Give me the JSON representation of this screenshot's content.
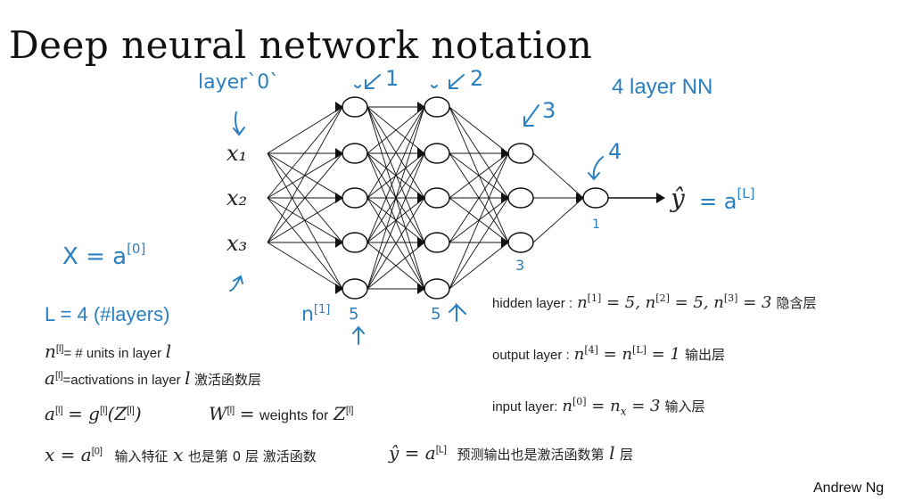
{
  "title": "Deep neural network notation",
  "annotations": {
    "layer0": "layer`0`",
    "layer1": "1",
    "layer2": "2",
    "layer3": "3",
    "layer4": "4",
    "four_layer": "4 layer NN",
    "x_eq": "X = a",
    "x_eq_sup": "[0]",
    "n_label": "n",
    "n_label_sup": "[1]",
    "count5a": "5",
    "count5b": "5",
    "count3": "3",
    "count1": "1",
    "yhat_eq": "= a",
    "yhat_eq_sup": "[L]"
  },
  "inputs": [
    "x₁",
    "x₂",
    "x₃"
  ],
  "yhat": "ŷ",
  "network": {
    "layer_sizes": [
      5,
      5,
      3,
      1
    ]
  },
  "left_notes": {
    "L_line": "L = 4  (#layers)",
    "n_def_sym": "n",
    "n_def_sup": "[l]",
    "n_def_text": "= # units in layer",
    "n_def_l": "l",
    "a_def_sym": "a",
    "a_def_sup": "[l]",
    "a_def_text": "=activations in layer",
    "a_def_l": "l",
    "a_def_cn": "激活函数层",
    "a_eq": "a",
    "a_eq_sup": "[l]",
    "a_eq_rhs": "= g",
    "a_eq_rhs_sup": "[l]",
    "a_eq_z": "(Z",
    "a_eq_z_sup": "[l]",
    "a_eq_close": ")",
    "w_sym": "W",
    "w_sup": "[l]",
    "w_text": "= weights for",
    "w_z": "Z",
    "w_z_sup": "[l]",
    "x_line_lhs": "x = a",
    "x_line_sup": "[0]",
    "x_line_cn1": "输入特征",
    "x_line_x": "x",
    "x_line_cn2": "也是第 0 层 激活函数",
    "y_line_lhs": "ŷ = a",
    "y_line_sup": "[L]",
    "y_line_cn1": "预测输出也是激活函数第",
    "y_line_l": "l",
    "y_line_cn2": "层"
  },
  "right_notes": {
    "hidden_label": "hidden layer :",
    "hidden_math": "n^[1] = 5, n^[2] = 5, n^[3] = 3",
    "hidden_cn": "隐含层",
    "output_label": "output layer :",
    "output_math": "n^[4] = n^[L] = 1",
    "output_cn": "输出层",
    "input_label": "input layer:",
    "input_math": "n^[0] = n_x = 3",
    "input_cn": "输入层"
  },
  "credit": "Andrew Ng",
  "colors": {
    "accent": "#2a7fc0",
    "ink": "#111111"
  }
}
